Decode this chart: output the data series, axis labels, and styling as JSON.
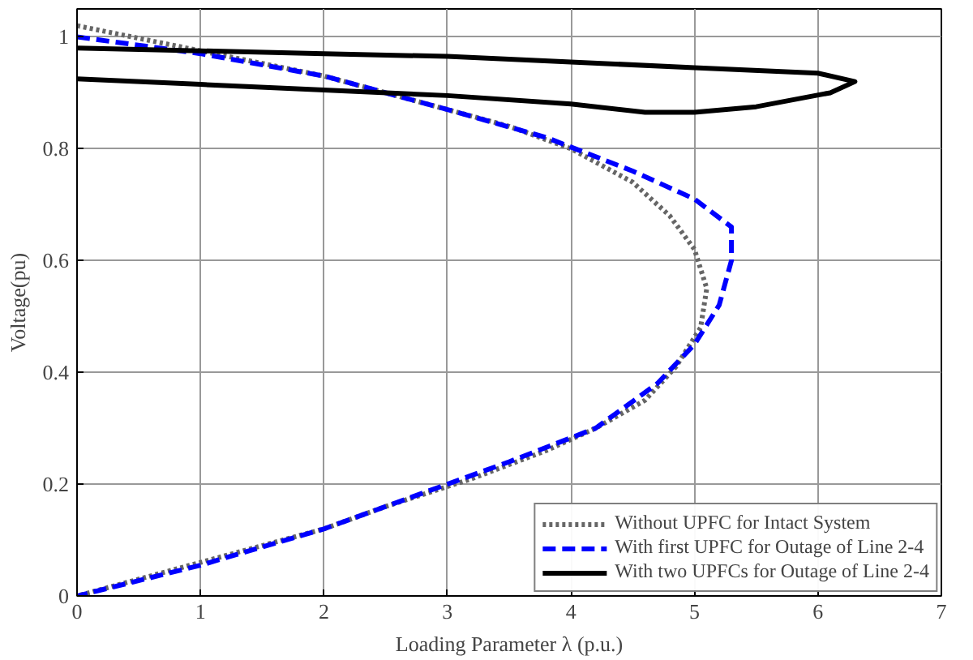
{
  "chart_data": {
    "type": "line",
    "xlabel": "Loading Parameter λ (p.u.)",
    "ylabel": "Voltage(pu)",
    "xlim": [
      0,
      7
    ],
    "ylim": [
      0,
      1.05
    ],
    "xticks": [
      0,
      1,
      2,
      3,
      4,
      5,
      6,
      7
    ],
    "yticks": [
      0,
      0.2,
      0.4,
      0.6,
      0.8,
      1
    ],
    "grid": true,
    "legend": "bottom right",
    "marker": "none",
    "series": [
      {
        "name": "Without UPFC for Intact System",
        "color": "#666666",
        "line_style": "dotted",
        "x": [
          0,
          1,
          2,
          3,
          3.5,
          4,
          4.5,
          4.8,
          5.0,
          5.1,
          5.05,
          4.85,
          4.6,
          4.2,
          3.8,
          3.2,
          2.5,
          2,
          1,
          0
        ],
        "values": [
          1.02,
          0.975,
          0.93,
          0.87,
          0.84,
          0.8,
          0.74,
          0.68,
          0.62,
          0.55,
          0.48,
          0.41,
          0.35,
          0.3,
          0.26,
          0.21,
          0.16,
          0.12,
          0.06,
          0
        ]
      },
      {
        "name": "With first UPFC for Outage of Line 2-4",
        "color": "#0000ff",
        "line_style": "dashed",
        "x": [
          0,
          1,
          2,
          3,
          3.8,
          4.5,
          5.0,
          5.3,
          5.3,
          5.2,
          5.0,
          4.7,
          4.2,
          3.5,
          2.5,
          2,
          1,
          0
        ],
        "values": [
          1.0,
          0.97,
          0.93,
          0.87,
          0.82,
          0.76,
          0.71,
          0.66,
          0.6,
          0.52,
          0.45,
          0.38,
          0.3,
          0.24,
          0.16,
          0.12,
          0.055,
          0
        ]
      },
      {
        "name": "With two UPFCs for Outage of Line 2-4",
        "color": "#000000",
        "line_style": "solid",
        "x": [
          0,
          1,
          2,
          3,
          4,
          5,
          6,
          6.3,
          6.1,
          5.5,
          5,
          4.6,
          4,
          3,
          2,
          1,
          0
        ],
        "values": [
          0.98,
          0.975,
          0.97,
          0.965,
          0.955,
          0.945,
          0.935,
          0.92,
          0.9,
          0.875,
          0.865,
          0.865,
          0.88,
          0.895,
          0.905,
          0.915,
          0.925
        ]
      }
    ]
  }
}
